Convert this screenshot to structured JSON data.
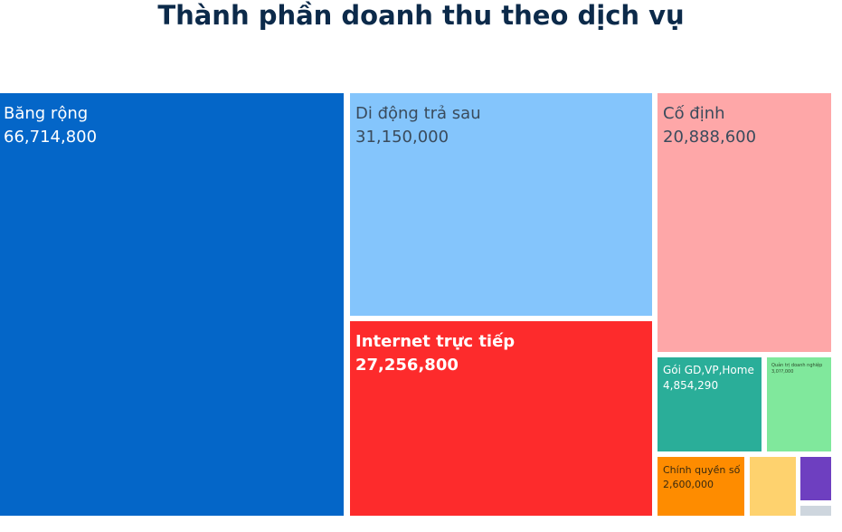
{
  "chart_data": {
    "type": "treemap",
    "title": "Thành phần doanh thu theo dịch vụ",
    "items": [
      {
        "name": "Băng rộng",
        "label": "66,714,800",
        "value": 66714800,
        "color": "#0466c8"
      },
      {
        "name": "Di động trả sau",
        "label": "31,150,000",
        "value": 31150000,
        "color": "#84c5fc"
      },
      {
        "name": "Internet trực tiếp",
        "label": "27,256,800",
        "value": 27256800,
        "color": "#fd2b2c"
      },
      {
        "name": "Cố định",
        "label": "20,888,600",
        "value": 20888600,
        "color": "#fea7a8"
      },
      {
        "name": "Gói GD,VP,Home",
        "label": "4,854,290",
        "value": 4854290,
        "color": "#2aae99"
      },
      {
        "name": "Quản trị doanh nghiệp",
        "label": "3,0??,000",
        "value": 3000000,
        "color": "#80e89c"
      },
      {
        "name": "Chính quyền số",
        "label": "2,600,000",
        "value": 2600000,
        "color": "#fe8c00"
      },
      {
        "name": "",
        "label": "",
        "value": 1500000,
        "color": "#fed26e"
      },
      {
        "name": "",
        "label": "",
        "value": 900000,
        "color": "#6e3fc0"
      },
      {
        "name": "",
        "label": "",
        "value": 300000,
        "color": "#ced6de"
      }
    ]
  }
}
